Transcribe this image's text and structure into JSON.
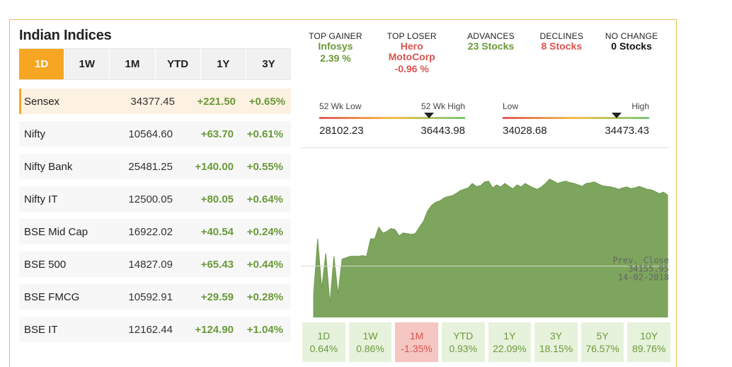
{
  "title": "Indian Indices",
  "tabs": [
    {
      "label": "1D",
      "active": true
    },
    {
      "label": "1W",
      "active": false
    },
    {
      "label": "1M",
      "active": false
    },
    {
      "label": "YTD",
      "active": false
    },
    {
      "label": "1Y",
      "active": false
    },
    {
      "label": "3Y",
      "active": false
    }
  ],
  "indices": [
    {
      "name": "Sensex",
      "value": "34377.45",
      "change": "+221.50",
      "pct": "+0.65%",
      "active": true
    },
    {
      "name": "Nifty",
      "value": "10564.60",
      "change": "+63.70",
      "pct": "+0.61%"
    },
    {
      "name": "Nifty Bank",
      "value": "25481.25",
      "change": "+140.00",
      "pct": "+0.55%"
    },
    {
      "name": "Nifty IT",
      "value": "12500.05",
      "change": "+80.05",
      "pct": "+0.64%"
    },
    {
      "name": "BSE Mid Cap",
      "value": "16922.02",
      "change": "+40.54",
      "pct": "+0.24%"
    },
    {
      "name": "BSE 500",
      "value": "14827.09",
      "change": "+65.43",
      "pct": "+0.44%"
    },
    {
      "name": "BSE FMCG",
      "value": "10592.91",
      "change": "+29.59",
      "pct": "+0.28%"
    },
    {
      "name": "BSE IT",
      "value": "12162.44",
      "change": "+124.90",
      "pct": "+1.04%"
    }
  ],
  "stats": {
    "top_gainer": {
      "label": "TOP GAINER",
      "name": "Infosys",
      "value": "2.39 %"
    },
    "top_loser": {
      "label": "TOP LOSER",
      "name_line1": "Hero",
      "name_line2": "MotoCorp",
      "value": "-0.96 %"
    },
    "advances": {
      "label": "ADVANCES",
      "value": "23 Stocks"
    },
    "declines": {
      "label": "DECLINES",
      "value": "8 Stocks"
    },
    "no_change": {
      "label": "NO CHANGE",
      "value": "0 Stocks"
    }
  },
  "week52": {
    "low_label": "52 Wk Low",
    "high_label": "52 Wk High",
    "low": "28102.23",
    "high": "36443.98",
    "current_fraction": 0.75
  },
  "day_range": {
    "low_label": "Low",
    "high_label": "High",
    "low": "34028.68",
    "high": "34473.43",
    "current_fraction": 0.78
  },
  "chart_data": {
    "type": "area",
    "prev_close_label": "Prev. Close",
    "prev_close_value": "34155.95",
    "prev_close_date": "14-02-2018",
    "prev_close": 34155.95,
    "ylim": [
      33980,
      34520
    ],
    "values": [
      34060,
      34250,
      34080,
      34200,
      34028,
      34190,
      34060,
      34180,
      34185,
      34190,
      34190,
      34190,
      34192,
      34190,
      34250,
      34250,
      34290,
      34270,
      34275,
      34285,
      34282,
      34260,
      34270,
      34268,
      34265,
      34268,
      34290,
      34310,
      34345,
      34365,
      34375,
      34380,
      34390,
      34395,
      34398,
      34405,
      34415,
      34420,
      34425,
      34440,
      34430,
      34432,
      34445,
      34448,
      34425,
      34435,
      34428,
      34440,
      34430,
      34422,
      34435,
      34428,
      34440,
      34432,
      34425,
      34420,
      34428,
      34440,
      34455,
      34448,
      34440,
      34445,
      34448,
      34443,
      34440,
      34435,
      34430,
      34440,
      34442,
      34445,
      34438,
      34432,
      34430,
      34428,
      34425,
      34420,
      34425,
      34428,
      34422,
      34425,
      34430,
      34425,
      34420,
      34418,
      34412,
      34405,
      34410,
      34400
    ]
  },
  "periods": [
    {
      "label": "1D",
      "value": "0.64%",
      "negative": false
    },
    {
      "label": "1W",
      "value": "0.86%",
      "negative": false
    },
    {
      "label": "1M",
      "value": "-1.35%",
      "negative": true
    },
    {
      "label": "YTD",
      "value": "0.93%",
      "negative": false
    },
    {
      "label": "1Y",
      "value": "22.09%",
      "negative": false
    },
    {
      "label": "3Y",
      "value": "18.15%",
      "negative": false
    },
    {
      "label": "5Y",
      "value": "76.57%",
      "negative": false
    },
    {
      "label": "10Y",
      "value": "89.76%",
      "negative": false
    }
  ]
}
